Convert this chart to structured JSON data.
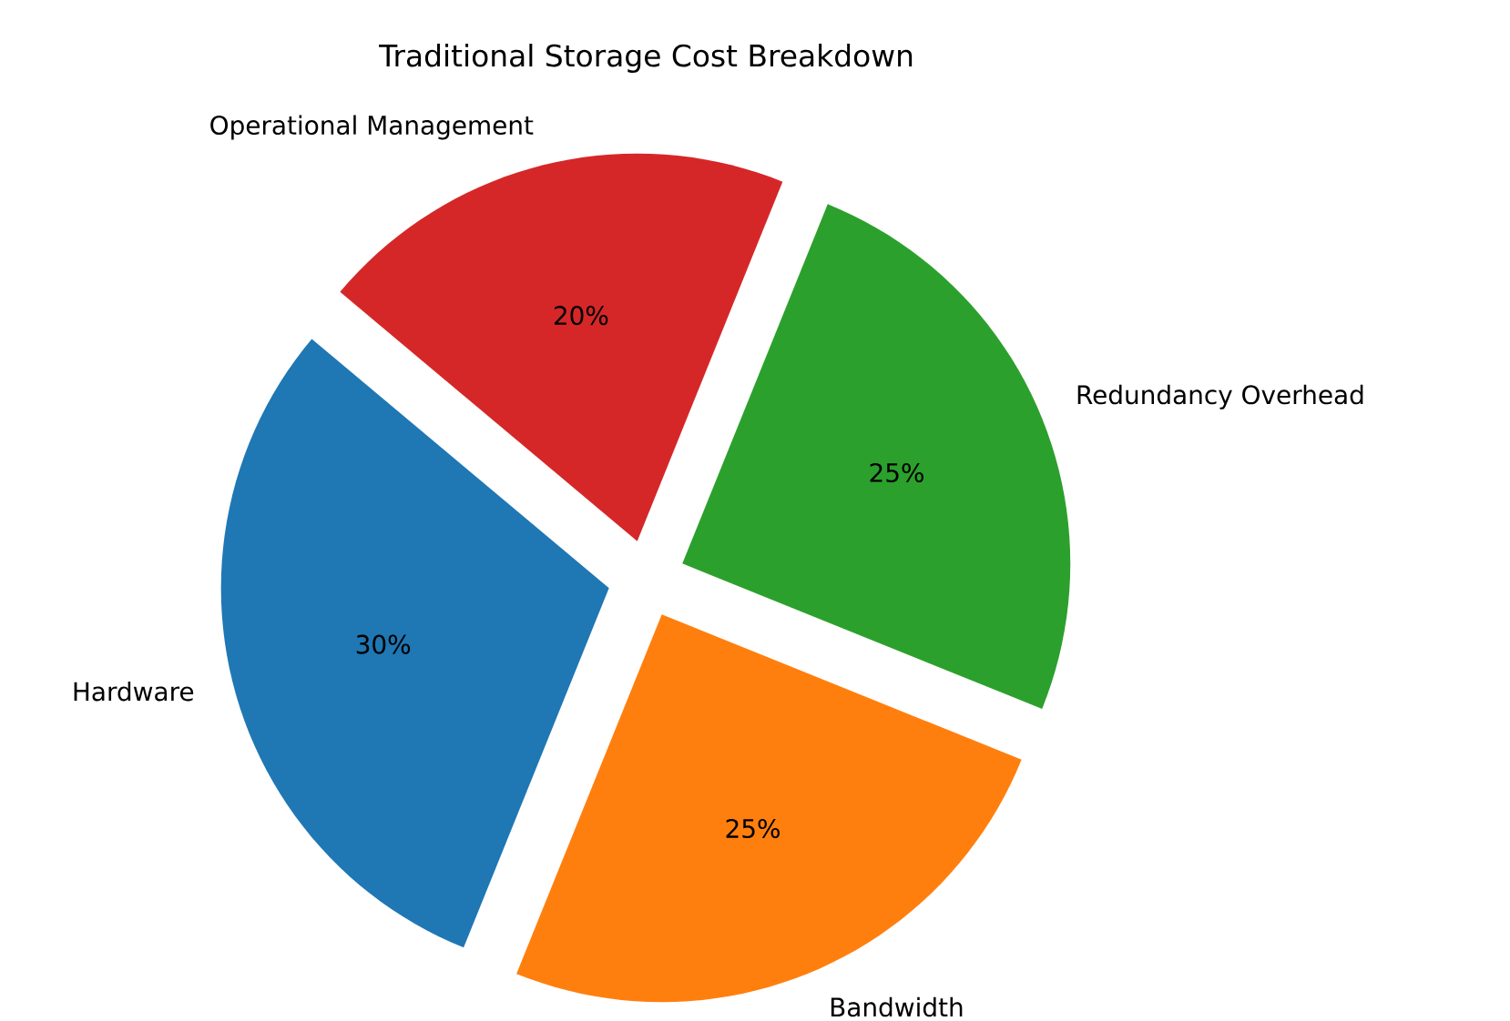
{
  "chart_data": {
    "type": "pie",
    "title": "Traditional Storage Cost Breakdown",
    "categories": [
      "Hardware",
      "Bandwidth",
      "Redundancy Overhead",
      "Operational Management"
    ],
    "values": [
      30,
      25,
      25,
      20
    ],
    "colors": [
      "#1f77b4",
      "#ff7f0e",
      "#2ca02c",
      "#d62728"
    ],
    "value_labels": [
      "30%",
      "25%",
      "25%",
      "20%"
    ]
  }
}
